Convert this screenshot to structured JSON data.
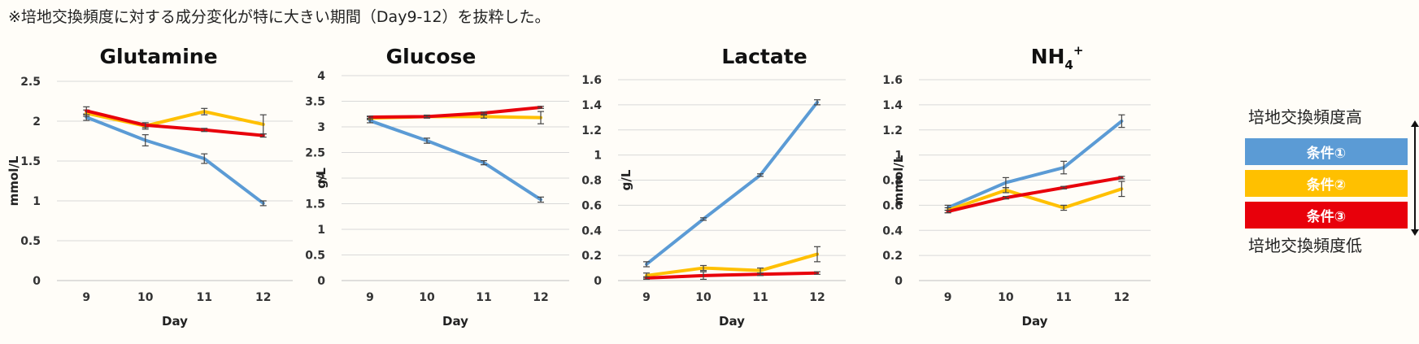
{
  "note": "※培地交換頻度に対する成分変化が特に大きい期間（Day9-12）を抜粋した。",
  "legend": {
    "high_label": "培地交換頻度高",
    "low_label": "培地交換頻度低",
    "items": [
      {
        "label": "条件①",
        "color": "#5b9bd5"
      },
      {
        "label": "条件②",
        "color": "#ffc000"
      },
      {
        "label": "条件③",
        "color": "#e8000b"
      }
    ]
  },
  "chart_data": [
    {
      "type": "line",
      "title": "Glutamine",
      "xlabel": "Day",
      "ylabel": "mmol/L",
      "categories": [
        "9",
        "10",
        "11",
        "12"
      ],
      "ylim": [
        0,
        2.5
      ],
      "yticks": [
        "0",
        "0.5",
        "1",
        "1.5",
        "2",
        "2.5"
      ],
      "ytick_values": [
        0,
        0.5,
        1,
        1.5,
        2,
        2.5
      ],
      "series": [
        {
          "values": [
            2.05,
            1.76,
            1.53,
            0.97
          ],
          "errors": [
            0.04,
            0.07,
            0.06,
            0.03
          ]
        },
        {
          "values": [
            2.1,
            1.94,
            2.12,
            1.96
          ],
          "errors": [
            0.04,
            0.04,
            0.04,
            0.12
          ]
        },
        {
          "values": [
            2.13,
            1.95,
            1.89,
            1.82
          ],
          "errors": [
            0.05,
            0.03,
            0.02,
            0.02
          ]
        }
      ]
    },
    {
      "type": "line",
      "title": "Glucose",
      "xlabel": "Day",
      "ylabel": "g/L",
      "categories": [
        "9",
        "10",
        "11",
        "12"
      ],
      "ylim": [
        0,
        4
      ],
      "yticks": [
        "0",
        "0.5",
        "1",
        "1.5",
        "2",
        "2.5",
        "3",
        "3.5",
        "4"
      ],
      "ytick_values": [
        0,
        0.5,
        1,
        1.5,
        2,
        2.5,
        3,
        3.5,
        4
      ],
      "series": [
        {
          "values": [
            3.12,
            2.73,
            2.3,
            1.58
          ],
          "errors": [
            0.04,
            0.05,
            0.04,
            0.05
          ]
        },
        {
          "values": [
            3.17,
            3.2,
            3.2,
            3.18
          ],
          "errors": [
            0.03,
            0.03,
            0.03,
            0.12
          ]
        },
        {
          "values": [
            3.19,
            3.2,
            3.27,
            3.38
          ],
          "errors": [
            0.02,
            0.02,
            0.02,
            0.02
          ]
        }
      ]
    },
    {
      "type": "line",
      "title": "Lactate",
      "xlabel": "Day",
      "ylabel": "g/L",
      "categories": [
        "9",
        "10",
        "11",
        "12"
      ],
      "ylim": [
        0,
        1.6
      ],
      "yticks": [
        "0",
        "0.2",
        "0.4",
        "0.6",
        "0.8",
        "1",
        "1.2",
        "1.4",
        "1.6"
      ],
      "ytick_values": [
        0,
        0.2,
        0.4,
        0.6,
        0.8,
        1.0,
        1.2,
        1.4,
        1.6
      ],
      "series": [
        {
          "values": [
            0.13,
            0.49,
            0.84,
            1.42
          ],
          "errors": [
            0.02,
            0.01,
            0.01,
            0.02
          ]
        },
        {
          "values": [
            0.04,
            0.1,
            0.08,
            0.21
          ],
          "errors": [
            0.02,
            0.02,
            0.02,
            0.06
          ]
        },
        {
          "values": [
            0.02,
            0.04,
            0.05,
            0.06
          ],
          "errors": [
            0.01,
            0.03,
            0.01,
            0.01
          ]
        }
      ]
    },
    {
      "type": "line",
      "title": "NH",
      "title_sub": "4",
      "title_sup": "+",
      "xlabel": "Day",
      "ylabel": "mmol/L",
      "categories": [
        "9",
        "10",
        "11",
        "12"
      ],
      "ylim": [
        0,
        1.6
      ],
      "yticks": [
        "0",
        "0.2",
        "0.4",
        "0.6",
        "0.8",
        "1",
        "1.2",
        "1.4",
        "1.6"
      ],
      "ytick_values": [
        0,
        0.2,
        0.4,
        0.6,
        0.8,
        1.0,
        1.2,
        1.4,
        1.6
      ],
      "series": [
        {
          "values": [
            0.58,
            0.78,
            0.9,
            1.27
          ],
          "errors": [
            0.02,
            0.04,
            0.05,
            0.05
          ]
        },
        {
          "values": [
            0.56,
            0.72,
            0.58,
            0.73
          ],
          "errors": [
            0.02,
            0.02,
            0.02,
            0.06
          ]
        },
        {
          "values": [
            0.55,
            0.66,
            0.74,
            0.82
          ],
          "errors": [
            0.01,
            0.01,
            0.01,
            0.01
          ]
        }
      ]
    }
  ]
}
